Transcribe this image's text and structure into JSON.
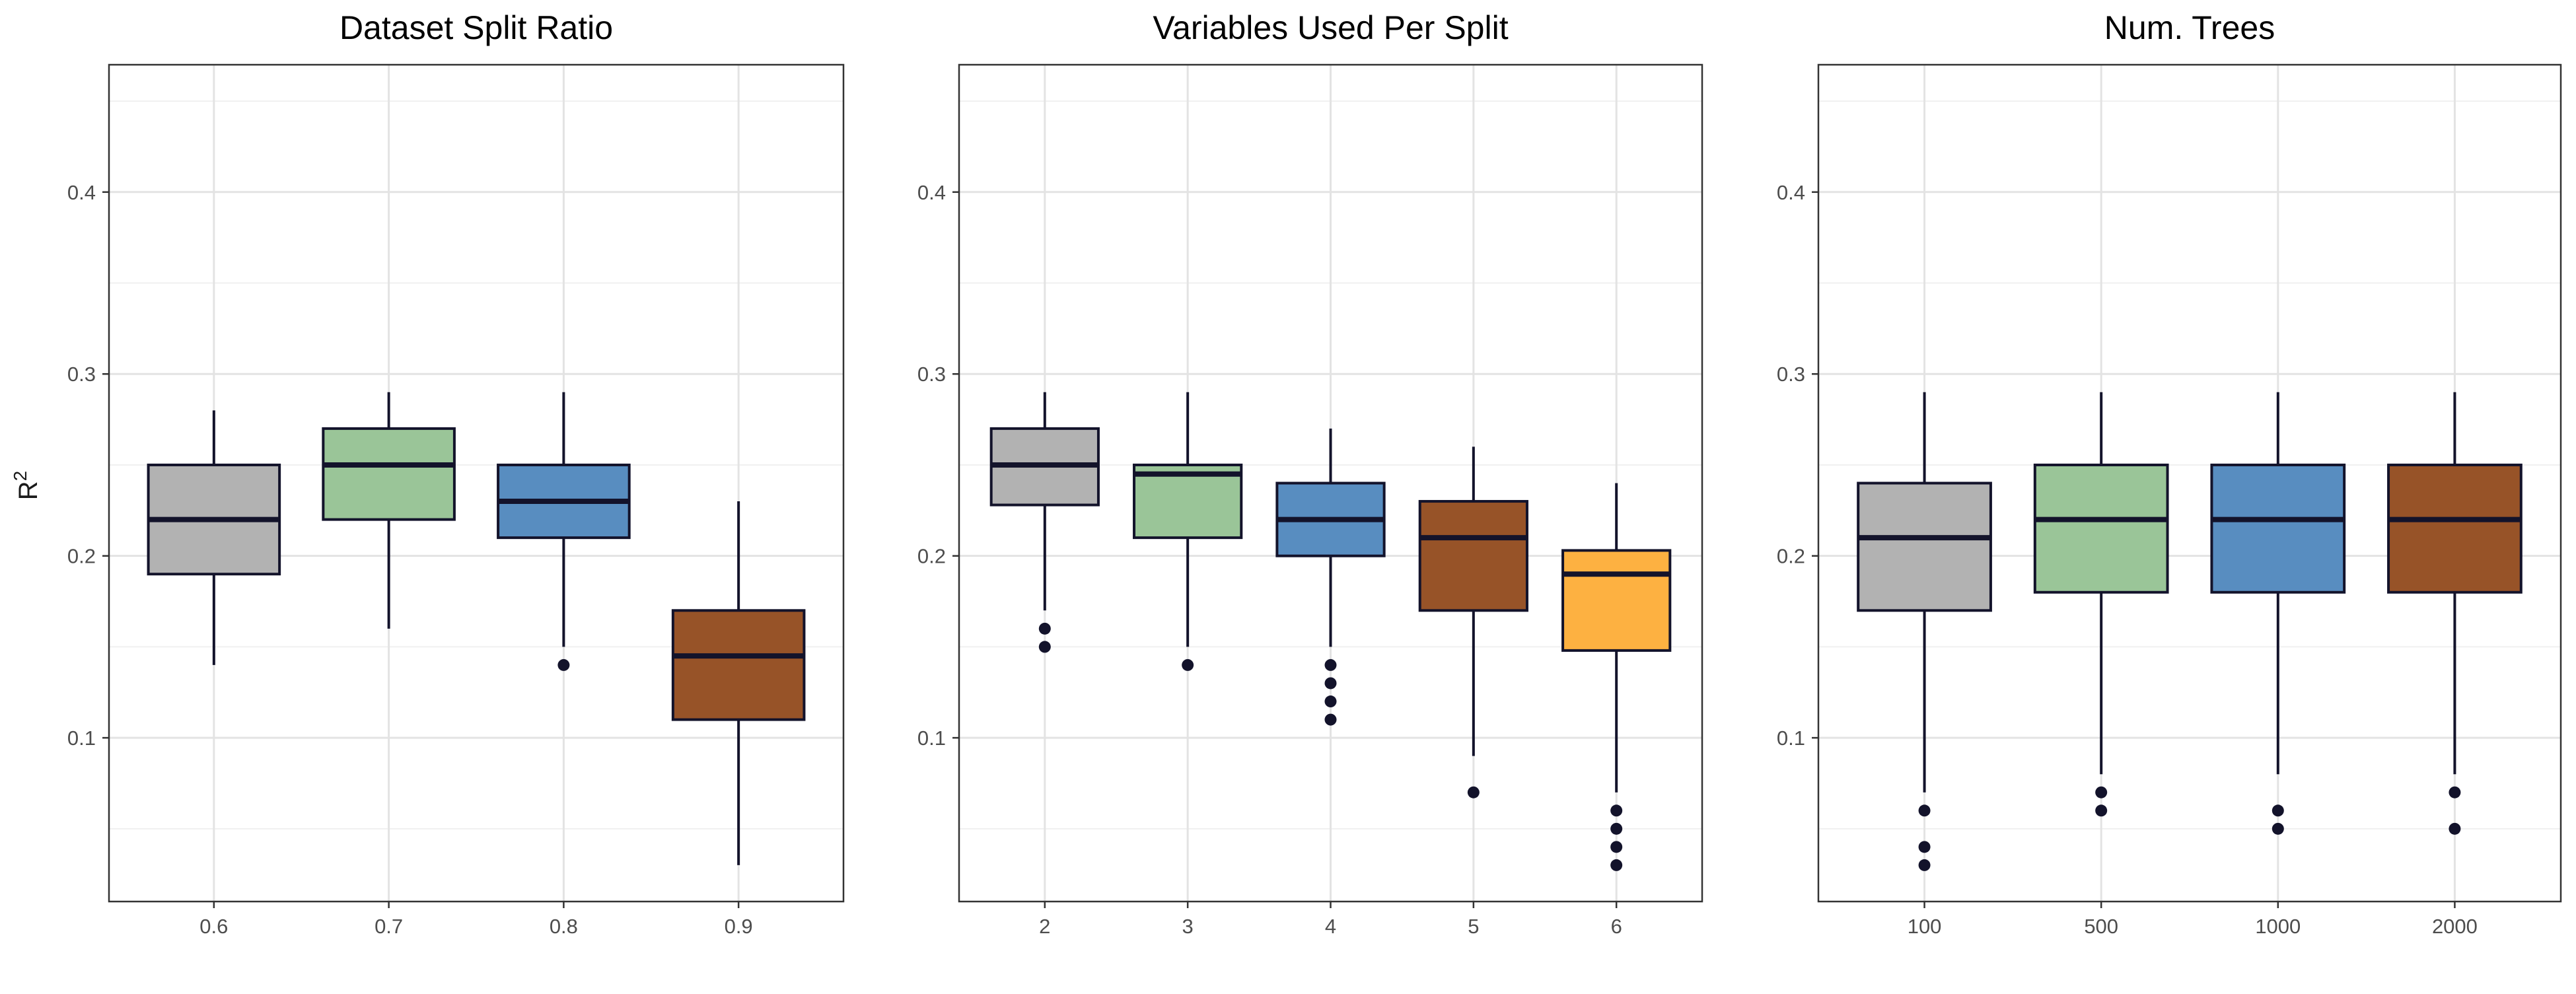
{
  "chart_data": {
    "type": "boxplot",
    "ylabel_base": "R",
    "ylabel_superscript": "2",
    "ylim": [
      0.01,
      0.47
    ],
    "yticks": [
      0.1,
      0.2,
      0.3,
      0.4
    ],
    "grid": true,
    "legend": "none",
    "median_color": "#13132b",
    "whisker_color": "#13132b",
    "outlier_color": "#13132b",
    "panels": [
      {
        "title": "Dataset Split Ratio",
        "categories": [
          "0.6",
          "0.7",
          "0.8",
          "0.9"
        ],
        "boxes": [
          {
            "min": 0.14,
            "q1": 0.19,
            "median": 0.22,
            "q3": 0.25,
            "max": 0.28,
            "outliers": [],
            "color": "#b2b2b2"
          },
          {
            "min": 0.16,
            "q1": 0.22,
            "median": 0.25,
            "q3": 0.27,
            "max": 0.29,
            "outliers": [],
            "color": "#9ac598"
          },
          {
            "min": 0.15,
            "q1": 0.21,
            "median": 0.23,
            "q3": 0.25,
            "max": 0.29,
            "outliers": [
              0.14
            ],
            "color": "#588dc0"
          },
          {
            "min": 0.03,
            "q1": 0.11,
            "median": 0.145,
            "q3": 0.17,
            "max": 0.23,
            "outliers": [],
            "color": "#975328"
          }
        ]
      },
      {
        "title": "Variables Used Per Split",
        "categories": [
          "2",
          "3",
          "4",
          "5",
          "6"
        ],
        "boxes": [
          {
            "min": 0.17,
            "q1": 0.228,
            "median": 0.25,
            "q3": 0.27,
            "max": 0.29,
            "outliers": [
              0.16,
              0.15
            ],
            "color": "#b2b2b2"
          },
          {
            "min": 0.15,
            "q1": 0.21,
            "median": 0.245,
            "q3": 0.25,
            "max": 0.29,
            "outliers": [
              0.14
            ],
            "color": "#9ac598"
          },
          {
            "min": 0.15,
            "q1": 0.2,
            "median": 0.22,
            "q3": 0.24,
            "max": 0.27,
            "outliers": [
              0.14,
              0.13,
              0.12,
              0.11
            ],
            "color": "#588dc0"
          },
          {
            "min": 0.09,
            "q1": 0.17,
            "median": 0.21,
            "q3": 0.23,
            "max": 0.26,
            "outliers": [
              0.07
            ],
            "color": "#975328"
          },
          {
            "min": 0.07,
            "q1": 0.148,
            "median": 0.19,
            "q3": 0.203,
            "max": 0.24,
            "outliers": [
              0.06,
              0.05,
              0.04,
              0.03
            ],
            "color": "#fdb141"
          }
        ]
      },
      {
        "title": "Num. Trees",
        "categories": [
          "100",
          "500",
          "1000",
          "2000"
        ],
        "boxes": [
          {
            "min": 0.07,
            "q1": 0.17,
            "median": 0.21,
            "q3": 0.24,
            "max": 0.29,
            "outliers": [
              0.06,
              0.04,
              0.03
            ],
            "color": "#b2b2b2"
          },
          {
            "min": 0.08,
            "q1": 0.18,
            "median": 0.22,
            "q3": 0.25,
            "max": 0.29,
            "outliers": [
              0.07,
              0.06
            ],
            "color": "#9ac598"
          },
          {
            "min": 0.08,
            "q1": 0.18,
            "median": 0.22,
            "q3": 0.25,
            "max": 0.29,
            "outliers": [
              0.06,
              0.05
            ],
            "color": "#588dc0"
          },
          {
            "min": 0.08,
            "q1": 0.18,
            "median": 0.22,
            "q3": 0.25,
            "max": 0.29,
            "outliers": [
              0.07,
              0.05
            ],
            "color": "#975328"
          }
        ]
      }
    ]
  }
}
